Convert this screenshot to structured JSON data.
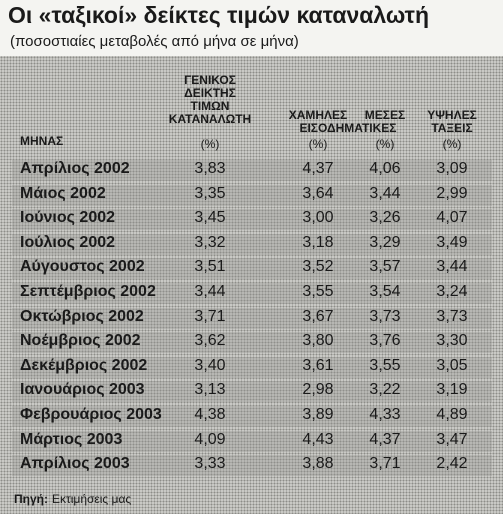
{
  "title": "Οι «ταξικοί» δείκτες τιμών καταναλωτή",
  "subtitle": "(ποσοστιαίες μεταβολές από μήνα σε μήνα)",
  "table": {
    "header": {
      "month": "ΜΗΝΑΣ",
      "group": "ΕΙΣΟΔΗΜΑΤΙΚΕΣ",
      "columns": [
        {
          "lines": [
            "ΓΕΝΙΚΟΣ",
            "ΔΕΙΚΤΗΣ",
            "ΤΙΜΩΝ",
            "ΚΑΤΑΝΑΛΩΤΗ"
          ],
          "unit": "(%)"
        },
        {
          "lines": [
            "ΧΑΜΗΛΕΣ"
          ],
          "unit": "(%)"
        },
        {
          "lines": [
            "ΜΕΣΕΣ"
          ],
          "unit": "(%)"
        },
        {
          "lines": [
            "ΥΨΗΛΕΣ",
            "ΤΑΞΕΙΣ"
          ],
          "unit": "(%)"
        }
      ]
    },
    "rows": [
      [
        "Απρίλιος 2002",
        "3,83",
        "4,37",
        "4,06",
        "3,09"
      ],
      [
        "Μάιος 2002",
        "3,35",
        "3,64",
        "3,44",
        "2,99"
      ],
      [
        "Ιούνιος 2002",
        "3,45",
        "3,00",
        "3,26",
        "4,07"
      ],
      [
        "Ιούλιος 2002",
        "3,32",
        "3,18",
        "3,29",
        "3,49"
      ],
      [
        "Αύγουστος 2002",
        "3,51",
        "3,52",
        "3,57",
        "3,44"
      ],
      [
        "Σεπτέμβριος 2002",
        "3,44",
        "3,55",
        "3,54",
        "3,24"
      ],
      [
        "Οκτώβριος 2002",
        "3,71",
        "3,67",
        "3,73",
        "3,73"
      ],
      [
        "Νοέμβριος 2002",
        "3,62",
        "3,80",
        "3,76",
        "3,30"
      ],
      [
        "Δεκέμβριος 2002",
        "3,40",
        "3,61",
        "3,55",
        "3,05"
      ],
      [
        "Ιανουάριος 2003",
        "3,13",
        "2,98",
        "3,22",
        "3,19"
      ],
      [
        "Φεβρουάριος 2003",
        "4,38",
        "3,89",
        "4,33",
        "4,89"
      ],
      [
        "Μάρτιος 2003",
        "4,09",
        "4,43",
        "4,37",
        "3,47"
      ],
      [
        "Απρίλιος 2003",
        "3,33",
        "3,88",
        "3,71",
        "2,42"
      ]
    ]
  },
  "source": {
    "label": "Πηγή:",
    "text": "Εκτιμήσεις μας"
  }
}
